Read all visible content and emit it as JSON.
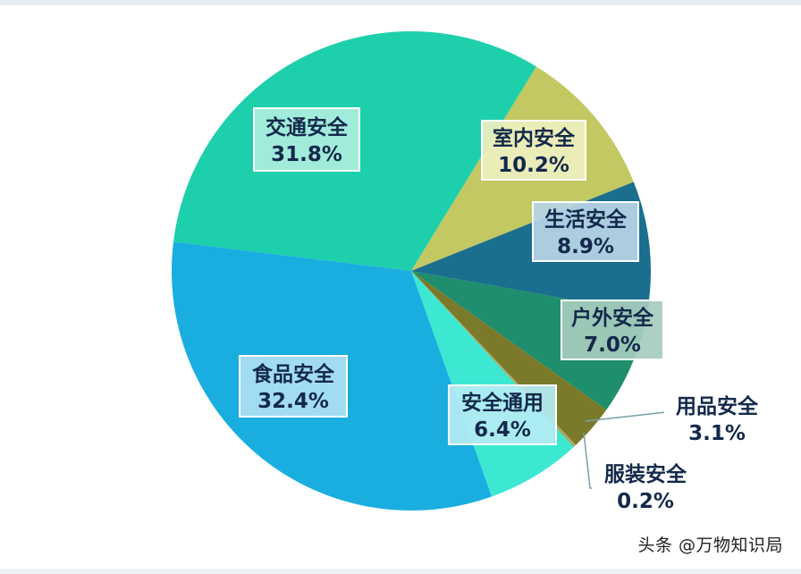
{
  "chart_data": {
    "type": "pie",
    "slices": [
      {
        "label": "交通安全",
        "value": 31.8,
        "value_label": "31.8%",
        "color": "#1ecfab"
      },
      {
        "label": "室内安全",
        "value": 10.2,
        "value_label": "10.2%",
        "color": "#c3c862"
      },
      {
        "label": "生活安全",
        "value": 8.9,
        "value_label": "8.9%",
        "color": "#1a6e8e"
      },
      {
        "label": "户外安全",
        "value": 7.0,
        "value_label": "7.0%",
        "color": "#1e8e6c"
      },
      {
        "label": "用品安全",
        "value": 3.1,
        "value_label": "3.1%",
        "color": "#7b7a2a"
      },
      {
        "label": "服装安全",
        "value": 0.2,
        "value_label": "0.2%",
        "color": "#a8a86a"
      },
      {
        "label": "安全通用",
        "value": 6.4,
        "value_label": "6.4%",
        "color": "#3ce8d2"
      },
      {
        "label": "食品安全",
        "value": 32.4,
        "value_label": "32.4%",
        "color": "#1aaee0"
      }
    ]
  },
  "watermark": "头条 @万物知识局"
}
